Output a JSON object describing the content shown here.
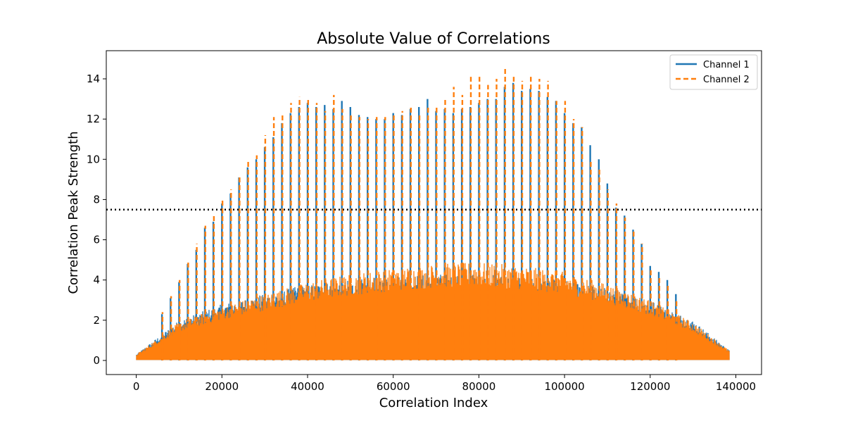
{
  "chart_data": {
    "type": "line",
    "title": "Absolute Value of Correlations",
    "xlabel": "Correlation Index",
    "ylabel": "Correlation Peak Strength",
    "xlim": [
      -7000,
      146000
    ],
    "ylim": [
      -0.7,
      15.4
    ],
    "xticks": [
      0,
      20000,
      40000,
      60000,
      80000,
      100000,
      120000,
      140000
    ],
    "yticks": [
      0,
      2,
      4,
      6,
      8,
      10,
      12,
      14
    ],
    "grid": false,
    "legend_position": "top-right",
    "threshold": {
      "y": 7.5,
      "style": "dotted",
      "color": "#000000"
    },
    "series": [
      {
        "name": "Channel 1",
        "color": "#1f77b4",
        "linestyle": "solid",
        "envelope": {
          "x": [
            0,
            10000,
            20000,
            30000,
            40000,
            50000,
            60000,
            70000,
            80000,
            90000,
            100000,
            110000,
            120000,
            130000,
            138500
          ],
          "y": [
            0.3,
            2.0,
            2.8,
            3.3,
            3.8,
            4.0,
            4.2,
            4.3,
            4.3,
            4.2,
            4.0,
            3.6,
            3.0,
            2.0,
            0.5
          ]
        },
        "peaks": {
          "x": [
            6000,
            8000,
            10000,
            12000,
            14000,
            16000,
            18000,
            20000,
            22000,
            24000,
            26000,
            28000,
            30000,
            32000,
            34000,
            36000,
            38000,
            40000,
            42000,
            44000,
            46000,
            48000,
            50000,
            52000,
            54000,
            56000,
            58000,
            60000,
            62000,
            64000,
            66000,
            68000,
            70000,
            72000,
            74000,
            76000,
            78000,
            80000,
            82000,
            84000,
            86000,
            88000,
            90000,
            92000,
            94000,
            96000,
            98000,
            100000,
            102000,
            104000,
            106000,
            108000,
            110000,
            112000,
            114000,
            116000,
            118000,
            120000,
            122000,
            124000,
            126000
          ],
          "y": [
            2.3,
            3.1,
            3.9,
            4.8,
            5.5,
            6.6,
            6.9,
            7.8,
            8.3,
            9.1,
            9.6,
            10.0,
            10.6,
            11.1,
            11.8,
            12.3,
            12.6,
            12.8,
            12.6,
            12.7,
            12.5,
            12.9,
            12.6,
            12.2,
            12.1,
            12.0,
            12.0,
            12.3,
            12.2,
            12.5,
            12.6,
            13.0,
            12.4,
            12.5,
            12.3,
            12.5,
            12.6,
            12.8,
            13.0,
            13.0,
            13.6,
            13.8,
            13.4,
            13.5,
            13.4,
            13.1,
            12.9,
            12.3,
            11.8,
            11.6,
            10.7,
            10.0,
            8.8,
            7.6,
            7.2,
            6.5,
            5.8,
            4.7,
            4.4,
            4.0,
            3.3
          ]
        }
      },
      {
        "name": "Channel 2",
        "color": "#ff7f0e",
        "linestyle": "dashed",
        "envelope": {
          "x": [
            0,
            10000,
            20000,
            30000,
            40000,
            50000,
            60000,
            70000,
            80000,
            90000,
            100000,
            110000,
            120000,
            130000,
            138500
          ],
          "y": [
            0.3,
            1.9,
            2.7,
            3.3,
            3.9,
            4.3,
            4.6,
            4.8,
            4.9,
            4.7,
            4.4,
            3.8,
            3.0,
            1.9,
            0.5
          ]
        },
        "peaks": {
          "x": [
            6000,
            8000,
            10000,
            12000,
            14000,
            16000,
            18000,
            20000,
            22000,
            24000,
            26000,
            28000,
            30000,
            32000,
            34000,
            36000,
            38000,
            40000,
            42000,
            44000,
            46000,
            48000,
            50000,
            52000,
            54000,
            56000,
            58000,
            60000,
            62000,
            64000,
            66000,
            68000,
            70000,
            72000,
            74000,
            76000,
            78000,
            80000,
            82000,
            84000,
            86000,
            88000,
            90000,
            92000,
            94000,
            96000,
            98000,
            100000,
            102000,
            104000,
            106000,
            108000,
            110000,
            112000,
            114000,
            116000,
            118000,
            120000,
            122000,
            124000,
            126000
          ],
          "y": [
            2.4,
            3.2,
            4.0,
            4.9,
            5.8,
            6.7,
            7.3,
            8.0,
            8.5,
            9.2,
            9.9,
            10.2,
            11.2,
            12.1,
            12.3,
            12.8,
            13.1,
            13.0,
            12.8,
            12.4,
            13.2,
            12.5,
            12.2,
            12.1,
            12.0,
            12.1,
            12.1,
            12.3,
            12.4,
            12.6,
            12.2,
            12.6,
            12.7,
            13.0,
            13.6,
            13.2,
            14.1,
            14.1,
            13.7,
            14.0,
            14.6,
            14.1,
            13.9,
            14.1,
            14.0,
            13.9,
            12.9,
            12.9,
            12.0,
            11.6,
            10.0,
            9.5,
            8.5,
            7.8,
            7.1,
            6.5,
            5.8,
            4.6,
            4.2,
            3.8,
            3.0
          ]
        }
      }
    ]
  }
}
